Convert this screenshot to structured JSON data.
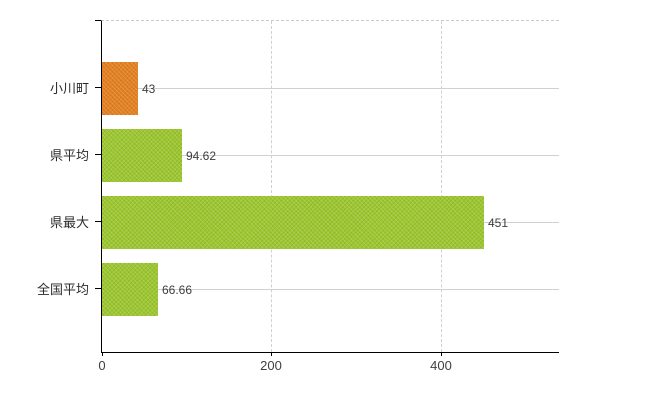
{
  "chart_data": {
    "type": "bar",
    "orientation": "horizontal",
    "title": "",
    "categories": [
      "小川町",
      "県平均",
      "県最大",
      "全国平均"
    ],
    "values": [
      43,
      94.62,
      451,
      66.66
    ],
    "value_labels": [
      "43",
      "94.62",
      "451",
      "66.66"
    ],
    "bar_colors": [
      "#e5801f",
      "#9cc72f",
      "#9cc72f",
      "#9cc72f"
    ],
    "x_ticks": [
      0,
      200,
      400
    ],
    "x_tick_labels": [
      "0",
      "200",
      "400"
    ],
    "xlim": [
      0,
      540
    ],
    "grid": {
      "horizontal": "solid line at each category center",
      "vertical": "dashed lines at value ticks 200 and 400",
      "top_border": "dashed"
    },
    "legend": "none",
    "axis_colors": {
      "axis_line": "#000000",
      "horizontal_grid": "#ccd5cb",
      "vertical_grid": "#d4ced4",
      "tick_text": "#3f3f3f",
      "category_text": "#2b2b2b",
      "value_label_text": "#3d3d3d"
    }
  }
}
